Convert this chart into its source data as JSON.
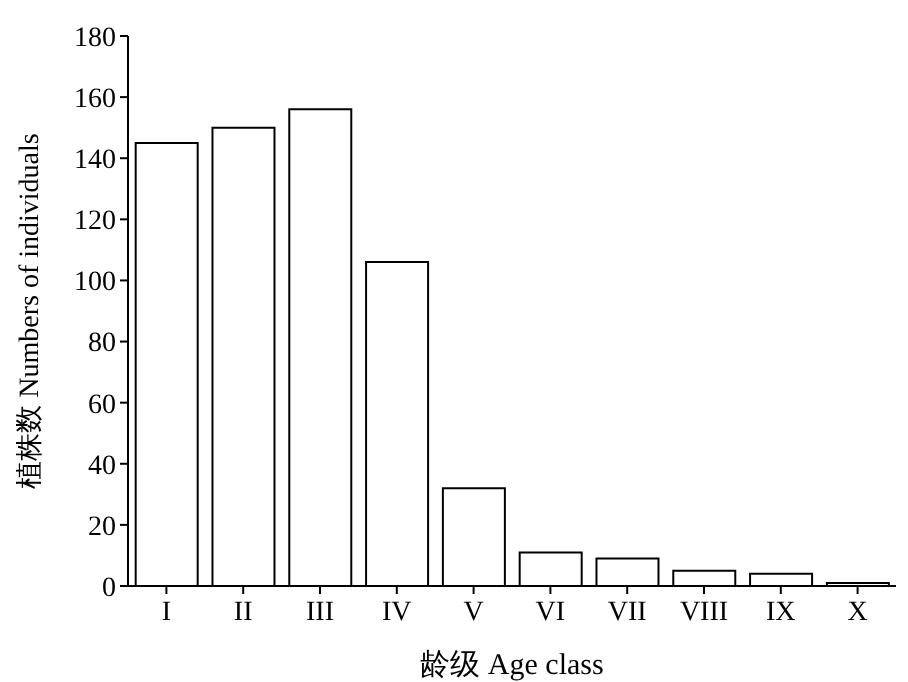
{
  "chart_data": {
    "type": "bar",
    "xlabel": "龄级 Age class",
    "ylabel": "植株数 Numbers of individuals",
    "categories": [
      "I",
      "II",
      "III",
      "IV",
      "V",
      "VI",
      "VII",
      "VIII",
      "IX",
      "X"
    ],
    "values": [
      145,
      150,
      156,
      106,
      32,
      11,
      9,
      5,
      4,
      1
    ],
    "color": "#ffffff",
    "ylim": [
      0,
      180
    ],
    "yticks": [
      0,
      20,
      40,
      60,
      80,
      100,
      120,
      140,
      160,
      180
    ],
    "grid": false
  }
}
